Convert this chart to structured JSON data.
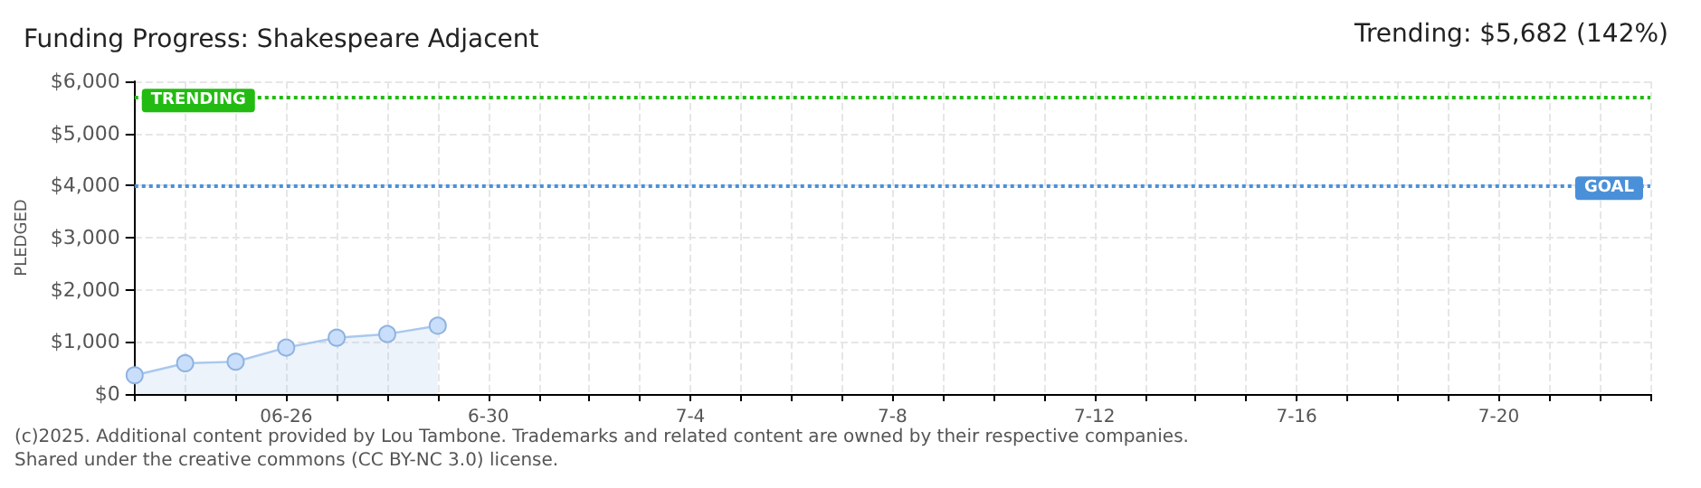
{
  "chart_data": {
    "type": "area",
    "title": "Funding Progress: Shakespeare Adjacent",
    "subtitle": "Trending: $5,682 (142%)",
    "ylabel": "PLEDGED",
    "x": [
      "--06-23",
      "--06-24",
      "--06-25",
      "--06-26",
      "--06-27",
      "--06-28",
      "--06-29"
    ],
    "series": [
      {
        "color": "#a9c8ee",
        "values": [
          360,
          590,
          620,
          890,
          1080,
          1150,
          1310
        ]
      }
    ],
    "marker": "circle",
    "xlim": [
      "--06-23",
      "--07-23"
    ],
    "xticks": [
      {
        "value": "--06-23",
        "label": null
      },
      {
        "value": "--06-24",
        "label": null
      },
      {
        "value": "--06-25",
        "label": null
      },
      {
        "value": "--06-26",
        "label": "06-26"
      },
      {
        "value": "--06-27",
        "label": null
      },
      {
        "value": "--06-28",
        "label": null
      },
      {
        "value": "--06-29",
        "label": null
      },
      {
        "value": "--06-30",
        "label": "6-30"
      },
      {
        "value": "--07-01",
        "label": null
      },
      {
        "value": "--07-02",
        "label": null
      },
      {
        "value": "--07-03",
        "label": null
      },
      {
        "value": "--07-04",
        "label": "7-4"
      },
      {
        "value": "--07-05",
        "label": null
      },
      {
        "value": "--07-06",
        "label": null
      },
      {
        "value": "--07-07",
        "label": null
      },
      {
        "value": "--07-08",
        "label": "7-8"
      },
      {
        "value": "--07-09",
        "label": null
      },
      {
        "value": "--07-10",
        "label": null
      },
      {
        "value": "--07-11",
        "label": null
      },
      {
        "value": "--07-12",
        "label": "7-12"
      },
      {
        "value": "--07-13",
        "label": null
      },
      {
        "value": "--07-14",
        "label": null
      },
      {
        "value": "--07-15",
        "label": null
      },
      {
        "value": "--07-16",
        "label": "7-16"
      },
      {
        "value": "--07-17",
        "label": null
      },
      {
        "value": "--07-18",
        "label": null
      },
      {
        "value": "--07-19",
        "label": null
      },
      {
        "value": "--07-20",
        "label": "7-20"
      },
      {
        "value": "--07-21",
        "label": null
      },
      {
        "value": "--07-22",
        "label": null
      },
      {
        "value": "--07-23",
        "label": null
      }
    ],
    "ylim": [
      0,
      6000
    ],
    "yticks": [
      {
        "value": 0,
        "label": "$0"
      },
      {
        "value": 1000,
        "label": "$1,000"
      },
      {
        "value": 2000,
        "label": "$2,000"
      },
      {
        "value": 3000,
        "label": "$3,000"
      },
      {
        "value": 4000,
        "label": "$4,000"
      },
      {
        "value": 5000,
        "label": "$5,000"
      },
      {
        "value": 6000,
        "label": "$6,000"
      }
    ],
    "grid": true,
    "ref_lines": [
      {
        "axis": "y",
        "value": 5682,
        "label": "TRENDING",
        "color": "#22bb11",
        "line_style": "dotted"
      },
      {
        "axis": "y",
        "value": 4000,
        "label": "GOAL",
        "color": "#4a90d9",
        "line_style": "dotted"
      }
    ],
    "annotations": [
      "(c)2025. Additional content provided by Lou Tambone. Trademarks and related content are owned by their respective companies.",
      "Shared under the creative commons (CC BY-NC 3.0) license."
    ]
  }
}
